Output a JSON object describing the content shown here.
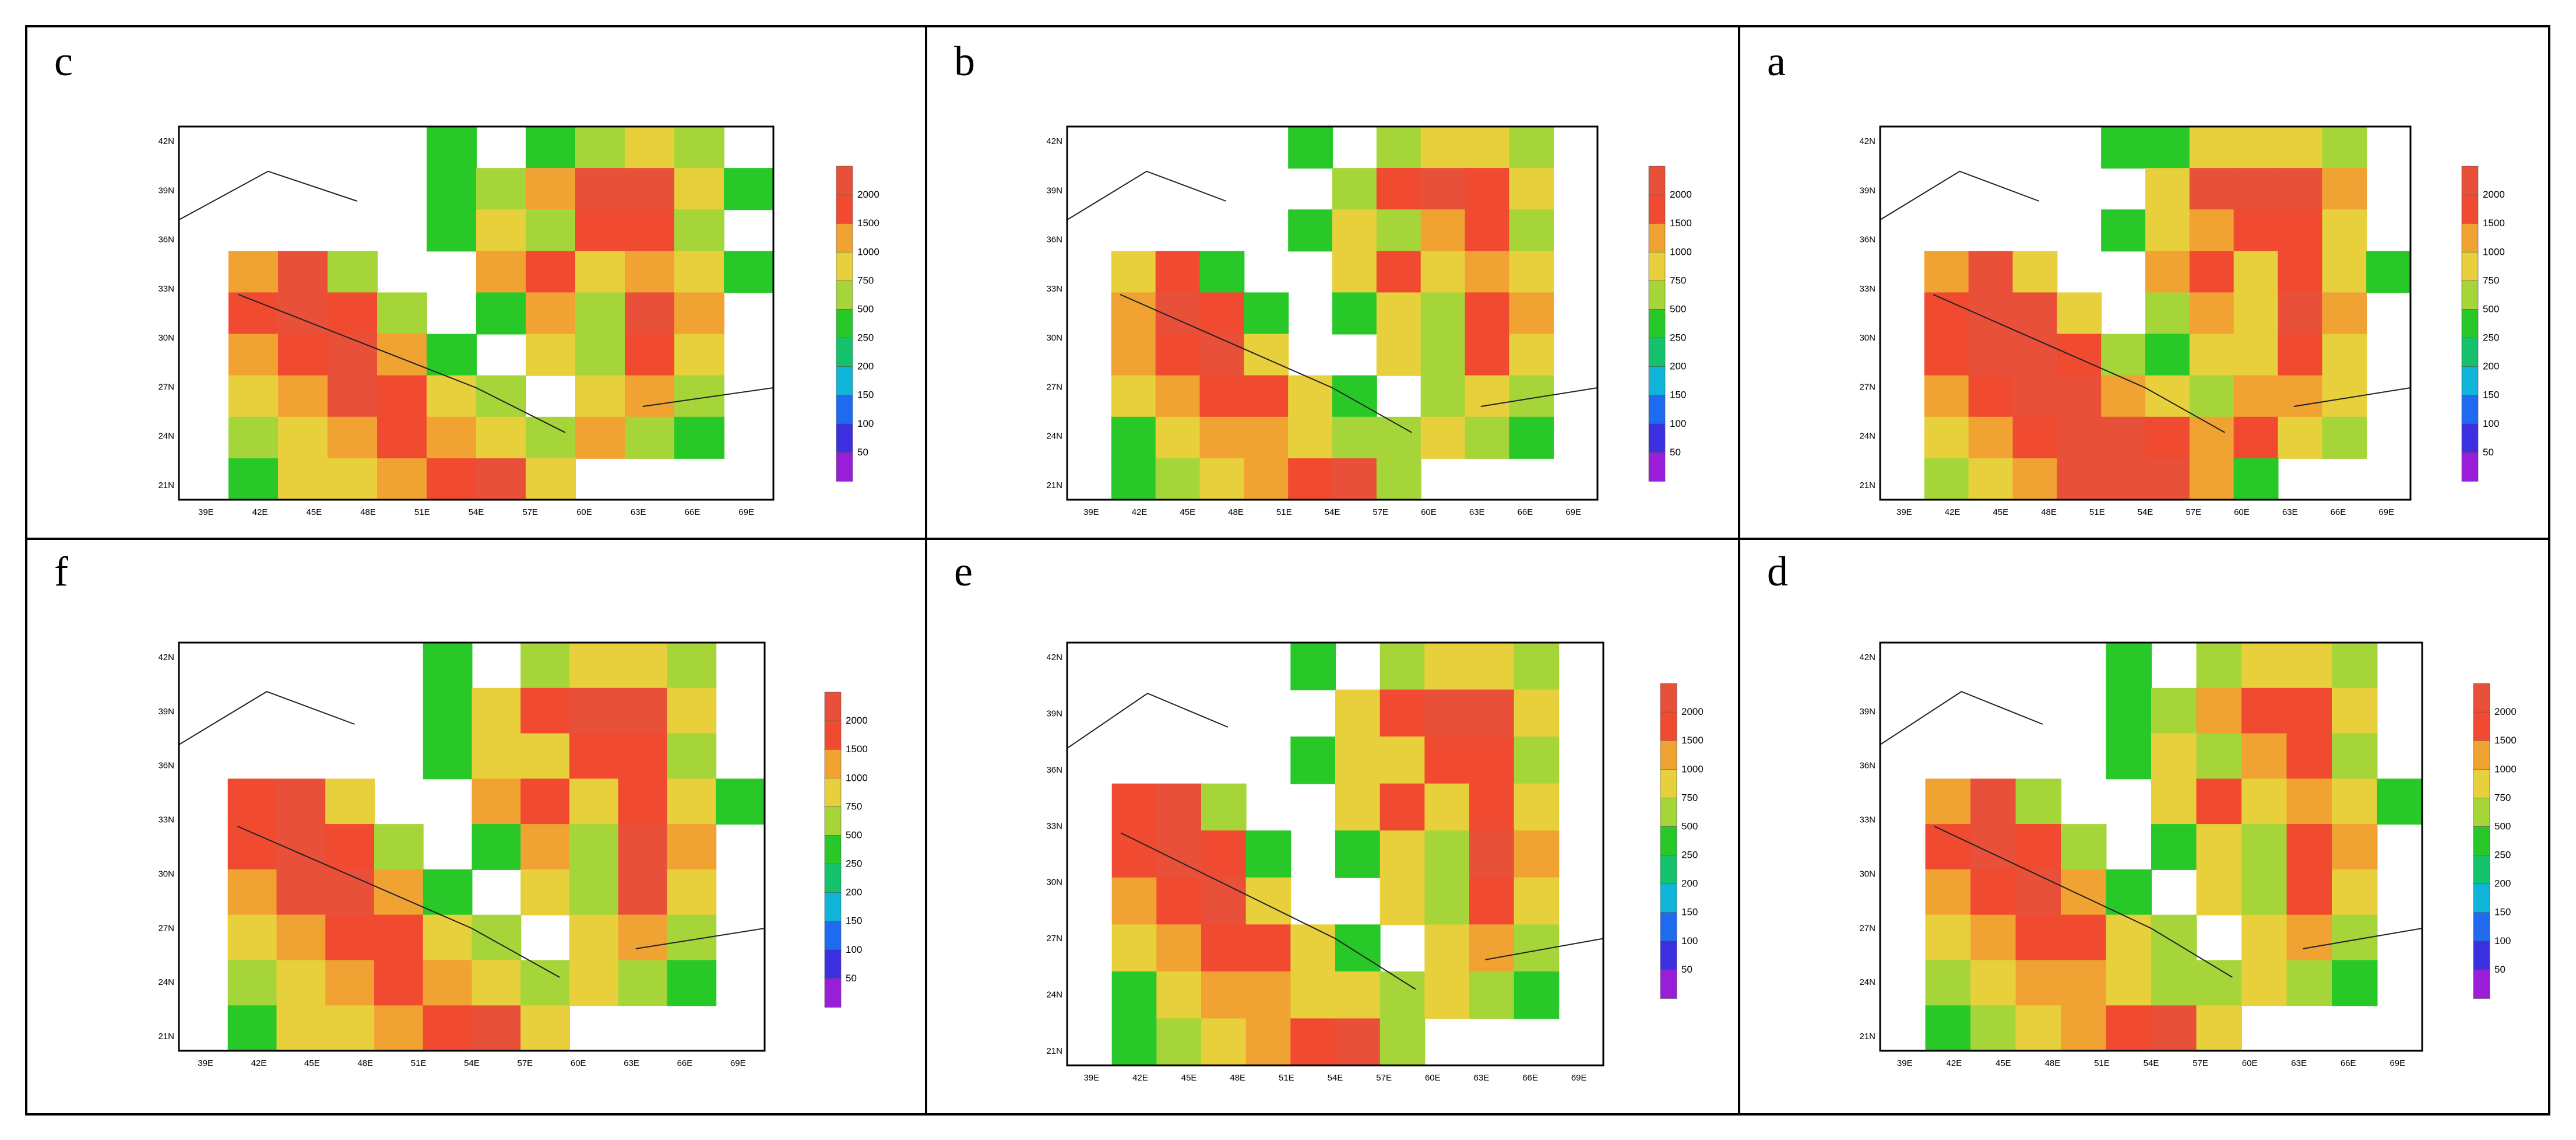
{
  "panels": [
    {
      "label": "c",
      "cells": [
        [
          0,
          0,
          0,
          0,
          0,
          1,
          0,
          1,
          2,
          3,
          2,
          0
        ],
        [
          0,
          0,
          0,
          0,
          0,
          1,
          2,
          4,
          6,
          6,
          3,
          1
        ],
        [
          0,
          0,
          0,
          0,
          0,
          1,
          3,
          2,
          5,
          5,
          2,
          0
        ],
        [
          0,
          4,
          6,
          2,
          0,
          0,
          4,
          5,
          3,
          4,
          3,
          1
        ],
        [
          0,
          5,
          6,
          5,
          2,
          0,
          1,
          4,
          2,
          6,
          4,
          0
        ],
        [
          0,
          4,
          5,
          6,
          4,
          1,
          0,
          3,
          2,
          5,
          3,
          0
        ],
        [
          0,
          3,
          4,
          6,
          5,
          3,
          2,
          0,
          3,
          4,
          2,
          0
        ],
        [
          0,
          2,
          3,
          4,
          5,
          4,
          3,
          2,
          4,
          2,
          1,
          0
        ],
        [
          0,
          1,
          3,
          3,
          4,
          5,
          6,
          3,
          0,
          0,
          0,
          0
        ]
      ]
    },
    {
      "label": "b",
      "cells": [
        [
          0,
          0,
          0,
          0,
          0,
          1,
          0,
          2,
          3,
          3,
          2,
          0
        ],
        [
          0,
          0,
          0,
          0,
          0,
          0,
          2,
          5,
          6,
          5,
          3,
          0
        ],
        [
          0,
          0,
          0,
          0,
          0,
          1,
          3,
          2,
          4,
          5,
          2,
          0
        ],
        [
          0,
          3,
          5,
          1,
          0,
          0,
          3,
          5,
          3,
          4,
          3,
          0
        ],
        [
          0,
          4,
          6,
          5,
          1,
          0,
          1,
          3,
          2,
          5,
          4,
          0
        ],
        [
          0,
          4,
          5,
          6,
          3,
          0,
          0,
          3,
          2,
          5,
          3,
          0
        ],
        [
          0,
          3,
          4,
          5,
          5,
          3,
          1,
          0,
          2,
          3,
          2,
          0
        ],
        [
          0,
          1,
          3,
          4,
          4,
          3,
          2,
          2,
          3,
          2,
          1,
          0
        ],
        [
          0,
          1,
          2,
          3,
          4,
          5,
          6,
          2,
          0,
          0,
          0,
          0
        ]
      ]
    },
    {
      "label": "a",
      "cells": [
        [
          0,
          0,
          0,
          0,
          0,
          1,
          1,
          3,
          3,
          3,
          2,
          0
        ],
        [
          0,
          0,
          0,
          0,
          0,
          0,
          3,
          6,
          6,
          6,
          4,
          0
        ],
        [
          0,
          0,
          0,
          0,
          0,
          1,
          3,
          4,
          5,
          5,
          3,
          0
        ],
        [
          0,
          4,
          6,
          3,
          0,
          0,
          4,
          5,
          3,
          5,
          3,
          1
        ],
        [
          0,
          5,
          6,
          6,
          3,
          0,
          2,
          4,
          3,
          6,
          4,
          0
        ],
        [
          0,
          5,
          6,
          6,
          5,
          2,
          1,
          3,
          3,
          5,
          3,
          0
        ],
        [
          0,
          4,
          5,
          6,
          6,
          4,
          3,
          2,
          4,
          4,
          3,
          0
        ],
        [
          0,
          3,
          4,
          5,
          6,
          6,
          5,
          4,
          5,
          3,
          2,
          0
        ],
        [
          0,
          2,
          3,
          4,
          6,
          6,
          6,
          4,
          1,
          0,
          0,
          0
        ]
      ]
    },
    {
      "label": "f",
      "cells": [
        [
          0,
          0,
          0,
          0,
          0,
          1,
          0,
          2,
          3,
          3,
          2,
          0
        ],
        [
          0,
          0,
          0,
          0,
          0,
          1,
          3,
          5,
          6,
          6,
          3,
          0
        ],
        [
          0,
          0,
          0,
          0,
          0,
          1,
          3,
          3,
          5,
          5,
          2,
          0
        ],
        [
          0,
          5,
          6,
          3,
          0,
          0,
          4,
          5,
          3,
          5,
          3,
          1
        ],
        [
          0,
          5,
          6,
          5,
          2,
          0,
          1,
          4,
          2,
          6,
          4,
          0
        ],
        [
          0,
          4,
          6,
          6,
          4,
          1,
          0,
          3,
          2,
          6,
          3,
          0
        ],
        [
          0,
          3,
          4,
          5,
          5,
          3,
          2,
          0,
          3,
          4,
          2,
          0
        ],
        [
          0,
          2,
          3,
          4,
          5,
          4,
          3,
          2,
          3,
          2,
          1,
          0
        ],
        [
          0,
          1,
          3,
          3,
          4,
          5,
          6,
          3,
          0,
          0,
          0,
          0
        ]
      ]
    },
    {
      "label": "e",
      "cells": [
        [
          0,
          0,
          0,
          0,
          0,
          1,
          0,
          2,
          3,
          3,
          2,
          0
        ],
        [
          0,
          0,
          0,
          0,
          0,
          0,
          3,
          5,
          6,
          6,
          3,
          0
        ],
        [
          0,
          0,
          0,
          0,
          0,
          1,
          3,
          3,
          5,
          5,
          2,
          0
        ],
        [
          0,
          5,
          6,
          2,
          0,
          0,
          3,
          5,
          3,
          5,
          3,
          0
        ],
        [
          0,
          5,
          6,
          5,
          1,
          0,
          1,
          3,
          2,
          6,
          4,
          0
        ],
        [
          0,
          4,
          5,
          6,
          3,
          0,
          0,
          3,
          2,
          5,
          3,
          0
        ],
        [
          0,
          3,
          4,
          5,
          5,
          3,
          1,
          0,
          3,
          4,
          2,
          0
        ],
        [
          0,
          1,
          3,
          4,
          4,
          3,
          3,
          2,
          3,
          2,
          1,
          0
        ],
        [
          0,
          1,
          2,
          3,
          4,
          5,
          6,
          2,
          0,
          0,
          0,
          0
        ]
      ]
    },
    {
      "label": "d",
      "cells": [
        [
          0,
          0,
          0,
          0,
          0,
          1,
          0,
          2,
          3,
          3,
          2,
          0
        ],
        [
          0,
          0,
          0,
          0,
          0,
          1,
          2,
          4,
          5,
          5,
          3,
          0
        ],
        [
          0,
          0,
          0,
          0,
          0,
          1,
          3,
          2,
          4,
          5,
          2,
          0
        ],
        [
          0,
          4,
          6,
          2,
          0,
          0,
          3,
          5,
          3,
          4,
          3,
          1
        ],
        [
          0,
          5,
          6,
          5,
          2,
          0,
          1,
          3,
          2,
          5,
          4,
          0
        ],
        [
          0,
          4,
          5,
          6,
          4,
          1,
          0,
          3,
          2,
          5,
          3,
          0
        ],
        [
          0,
          3,
          4,
          5,
          5,
          3,
          2,
          0,
          3,
          4,
          2,
          0
        ],
        [
          0,
          2,
          3,
          4,
          4,
          3,
          2,
          2,
          3,
          2,
          1,
          0
        ],
        [
          0,
          1,
          2,
          3,
          4,
          5,
          6,
          3,
          0,
          0,
          0,
          0
        ]
      ]
    }
  ],
  "lon_ticks": [
    "39E",
    "42E",
    "45E",
    "48E",
    "51E",
    "54E",
    "57E",
    "60E",
    "63E",
    "66E",
    "69E"
  ],
  "lat_ticks": [
    "42N",
    "39N",
    "36N",
    "33N",
    "30N",
    "27N",
    "24N",
    "21N"
  ],
  "colorbar": {
    "levels": [
      "50",
      "100",
      "150",
      "200",
      "250",
      "500",
      "750",
      "1000",
      "1500",
      "2000"
    ],
    "colors": [
      "#9a1dd8",
      "#3c2fe0",
      "#1e6bf0",
      "#10b4d8",
      "#13c26a",
      "#28c828",
      "#a6d53a",
      "#e8cf3c",
      "#f0a232",
      "#f04a30",
      "#e8503a"
    ]
  },
  "chart_data": [
    {
      "type": "heatmap",
      "panel": "c",
      "x": [
        "39E",
        "42E",
        "45E",
        "48E",
        "51E",
        "54E",
        "57E",
        "60E",
        "63E",
        "66E",
        "69E"
      ],
      "y": [
        "42N",
        "39N",
        "36N",
        "33N",
        "30N",
        "27N",
        "24N",
        "21N"
      ],
      "legend_levels": [
        50,
        100,
        150,
        200,
        250,
        500,
        750,
        1000,
        1500,
        2000
      ]
    },
    {
      "type": "heatmap",
      "panel": "b",
      "x": [
        "39E",
        "42E",
        "45E",
        "48E",
        "51E",
        "54E",
        "57E",
        "60E",
        "63E",
        "66E",
        "69E"
      ],
      "y": [
        "42N",
        "39N",
        "36N",
        "33N",
        "30N",
        "27N",
        "24N",
        "21N"
      ],
      "legend_levels": [
        50,
        100,
        150,
        200,
        250,
        500,
        750,
        1000,
        1500,
        2000
      ]
    },
    {
      "type": "heatmap",
      "panel": "a",
      "x": [
        "39E",
        "42E",
        "45E",
        "48E",
        "51E",
        "54E",
        "57E",
        "60E",
        "63E",
        "66E",
        "69E"
      ],
      "y": [
        "42N",
        "39N",
        "36N",
        "33N",
        "30N",
        "27N",
        "24N",
        "21N"
      ],
      "legend_levels": [
        50,
        100,
        150,
        200,
        250,
        500,
        750,
        1000,
        1500,
        2000
      ]
    },
    {
      "type": "heatmap",
      "panel": "f",
      "x": [
        "39E",
        "42E",
        "45E",
        "48E",
        "51E",
        "54E",
        "57E",
        "60E",
        "63E",
        "66E",
        "69E"
      ],
      "y": [
        "42N",
        "39N",
        "36N",
        "33N",
        "30N",
        "27N",
        "24N",
        "21N"
      ],
      "legend_levels": [
        50,
        100,
        150,
        200,
        250,
        500,
        750,
        1000,
        1500,
        2000
      ]
    },
    {
      "type": "heatmap",
      "panel": "e",
      "x": [
        "39E",
        "42E",
        "45E",
        "48E",
        "51E",
        "54E",
        "57E",
        "60E",
        "63E",
        "66E",
        "69E"
      ],
      "y": [
        "42N",
        "39N",
        "36N",
        "33N",
        "30N",
        "27N",
        "24N",
        "21N"
      ],
      "legend_levels": [
        50,
        100,
        150,
        200,
        250,
        500,
        750,
        1000,
        1500,
        2000
      ]
    },
    {
      "type": "heatmap",
      "panel": "d",
      "x": [
        "39E",
        "42E",
        "45E",
        "48E",
        "51E",
        "54E",
        "57E",
        "60E",
        "63E",
        "66E",
        "69E"
      ],
      "y": [
        "42N",
        "39N",
        "36N",
        "33N",
        "30N",
        "27N",
        "24N",
        "21N"
      ],
      "legend_levels": [
        50,
        100,
        150,
        200,
        250,
        500,
        750,
        1000,
        1500,
        2000
      ]
    }
  ]
}
